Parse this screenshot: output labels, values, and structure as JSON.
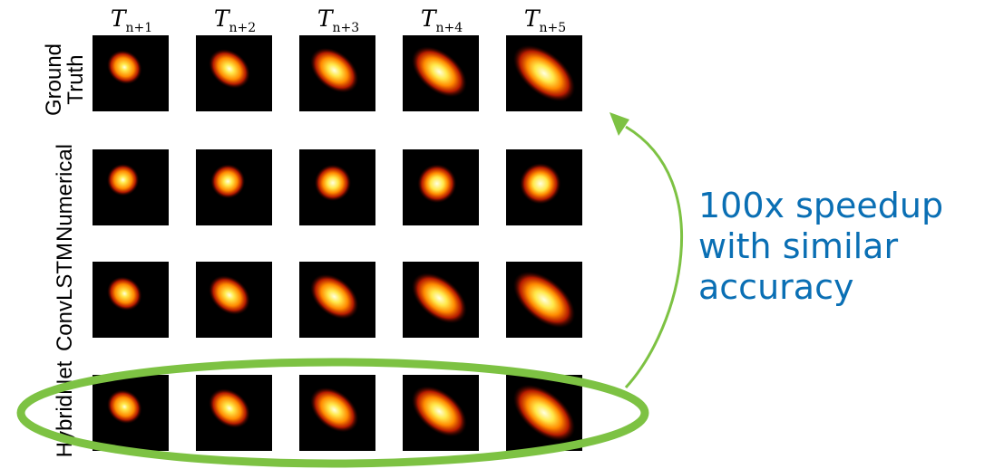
{
  "column_headers": [
    {
      "base": "T",
      "sub": "n+1"
    },
    {
      "base": "T",
      "sub": "n+2"
    },
    {
      "base": "T",
      "sub": "n+3"
    },
    {
      "base": "T",
      "sub": "n+4"
    },
    {
      "base": "T",
      "sub": "n+5"
    }
  ],
  "row_labels": [
    "Ground\nTruth",
    "Numerical",
    "ConvLSTM",
    "HybridNet"
  ],
  "annotation": {
    "lines": [
      "100x speedup",
      "with similar",
      "accuracy"
    ],
    "color": "#0a6fb4"
  },
  "highlight_color": "#7dc243"
}
